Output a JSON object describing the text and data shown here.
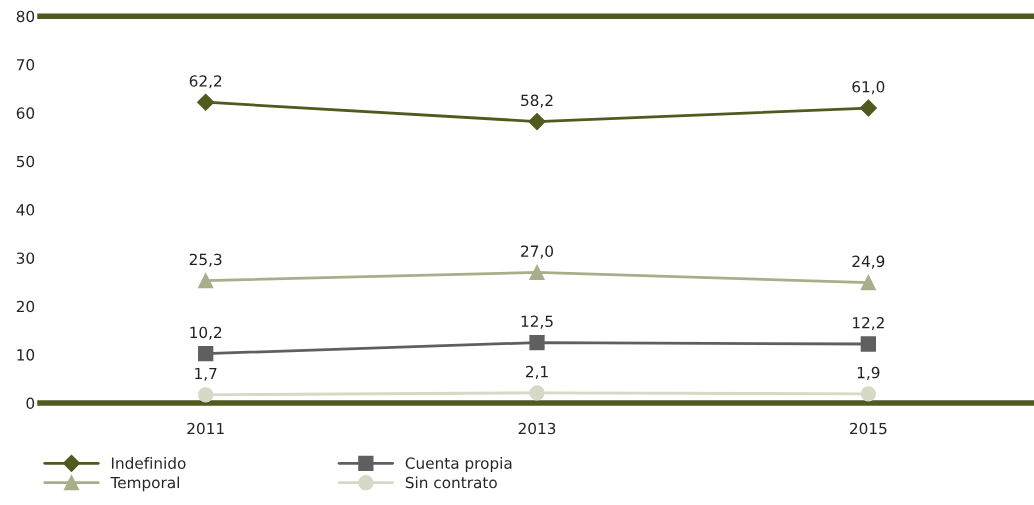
{
  "chart_data": {
    "type": "line",
    "categories": [
      "2011",
      "2013",
      "2015"
    ],
    "series": [
      {
        "name": "Indefinido",
        "color": "#4e5a1e",
        "marker": "diamond",
        "values": [
          62.2,
          58.2,
          61.0
        ],
        "value_labels": [
          "62,2",
          "58,2",
          "61,0"
        ]
      },
      {
        "name": "Temporal",
        "color": "#a9ae8a",
        "marker": "triangle",
        "values": [
          25.3,
          27.0,
          24.9
        ],
        "value_labels": [
          "25,3",
          "27,0",
          "24,9"
        ]
      },
      {
        "name": "Cuenta propia",
        "color": "#5f5f5f",
        "marker": "square",
        "values": [
          10.2,
          12.5,
          12.2
        ],
        "value_labels": [
          "10,2",
          "12,5",
          "12,2"
        ]
      },
      {
        "name": "Sin contrato",
        "color": "#d5d9c6",
        "marker": "circle",
        "values": [
          1.7,
          2.1,
          1.9
        ],
        "value_labels": [
          "1,7",
          "2,1",
          "1,9"
        ]
      }
    ],
    "ylim": [
      0,
      80
    ],
    "yticks": [
      0,
      10,
      20,
      30,
      40,
      50,
      60,
      70,
      80
    ],
    "grid": false,
    "legend": "bottom left",
    "line_style": "solid"
  }
}
